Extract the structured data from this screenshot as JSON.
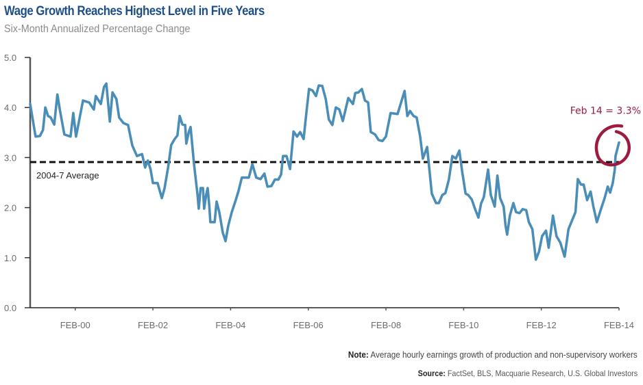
{
  "chart_data": {
    "type": "line",
    "title": "Wage Growth Reaches Highest Level in Five Years",
    "subtitle": "Six-Month Annualized Percentage Change",
    "xlabel": "",
    "ylabel": "",
    "xlim": [
      1998.92,
      2014.08
    ],
    "ylim": [
      0,
      5
    ],
    "grid": false,
    "y_ticks": [
      0,
      1,
      2,
      3,
      4,
      5
    ],
    "y_tick_labels": [
      "0.0",
      "1.0",
      "2.0",
      "3.0",
      "4.0",
      "5.0"
    ],
    "x_ticks": [
      2000.08,
      2002.08,
      2004.08,
      2006.08,
      2008.08,
      2010.08,
      2012.08,
      2014.08
    ],
    "x_tick_labels": [
      "FEB-00",
      "FEB-02",
      "FEB-04",
      "FEB-06",
      "FEB-08",
      "FEB-10",
      "FEB-12",
      "FEB-14"
    ],
    "series": [
      {
        "name": "Average hourly earnings growth (6-month annualized %)",
        "color": "#4a8db7",
        "x": [
          1998.92,
          1999.06,
          1999.17,
          1999.25,
          1999.31,
          1999.38,
          1999.45,
          1999.54,
          1999.62,
          1999.69,
          1999.8,
          1999.96,
          2000.03,
          2000.1,
          2000.28,
          2000.44,
          2000.56,
          2000.61,
          2000.74,
          2000.82,
          2000.88,
          2000.97,
          2001.04,
          2001.14,
          2001.21,
          2001.32,
          2001.44,
          2001.55,
          2001.67,
          2001.8,
          2001.88,
          2001.95,
          2002.02,
          2002.08,
          2002.2,
          2002.31,
          2002.38,
          2002.47,
          2002.55,
          2002.64,
          2002.71,
          2002.77,
          2002.84,
          2002.91,
          2002.94,
          2003.0,
          2003.05,
          2003.14,
          2003.23,
          2003.26,
          2003.31,
          2003.37,
          2003.4,
          2003.45,
          2003.49,
          2003.53,
          2003.56,
          2003.67,
          2003.72,
          2003.79,
          2003.88,
          2003.95,
          2004.02,
          2004.11,
          2004.2,
          2004.28,
          2004.37,
          2004.55,
          2004.64,
          2004.74,
          2004.85,
          2004.95,
          2005.03,
          2005.13,
          2005.22,
          2005.31,
          2005.38,
          2005.43,
          2005.52,
          2005.61,
          2005.7,
          2005.79,
          2005.87,
          2005.96,
          2006.03,
          2006.1,
          2006.19,
          2006.28,
          2006.35,
          2006.44,
          2006.53,
          2006.61,
          2006.7,
          2006.79,
          2006.88,
          2006.97,
          2007.11,
          2007.23,
          2007.29,
          2007.37,
          2007.46,
          2007.54,
          2007.62,
          2007.69,
          2007.8,
          2007.89,
          2007.99,
          2008.08,
          2008.2,
          2008.38,
          2008.47,
          2008.56,
          2008.63,
          2008.7,
          2008.79,
          2008.87,
          2008.96,
          2009.03,
          2009.14,
          2009.17,
          2009.26,
          2009.37,
          2009.44,
          2009.53,
          2009.61,
          2009.7,
          2009.79,
          2009.88,
          2009.97,
          2010.04,
          2010.13,
          2010.2,
          2010.29,
          2010.37,
          2010.46,
          2010.53,
          2010.6,
          2010.71,
          2010.78,
          2010.88,
          2010.95,
          2011.02,
          2011.11,
          2011.16,
          2011.2,
          2011.27,
          2011.36,
          2011.43,
          2011.52,
          2011.6,
          2011.69,
          2011.76,
          2011.85,
          2011.94,
          2012.02,
          2012.1,
          2012.2,
          2012.27,
          2012.38,
          2012.47,
          2012.57,
          2012.68,
          2012.78,
          2012.89,
          2012.96,
          2013.02,
          2013.1,
          2013.17,
          2013.26,
          2013.35,
          2013.42,
          2013.51,
          2013.62,
          2013.71,
          2013.79,
          2013.85,
          2013.92,
          2013.97,
          2013.99,
          2014.08
        ],
        "values": [
          4.07,
          3.42,
          3.43,
          3.55,
          4.0,
          3.83,
          3.8,
          3.66,
          4.26,
          3.93,
          3.46,
          3.42,
          3.89,
          3.42,
          4.14,
          4.1,
          3.96,
          4.23,
          4.07,
          4.41,
          4.48,
          3.72,
          4.3,
          4.17,
          3.8,
          3.69,
          3.65,
          3.24,
          3.03,
          3.07,
          2.8,
          2.94,
          2.76,
          2.49,
          2.49,
          2.19,
          2.39,
          2.8,
          3.25,
          3.37,
          3.44,
          3.83,
          3.66,
          3.65,
          3.28,
          3.5,
          3.61,
          2.86,
          2.25,
          1.98,
          2.39,
          2.39,
          1.98,
          2.25,
          2.39,
          2.05,
          1.71,
          1.71,
          2.12,
          1.91,
          1.5,
          1.33,
          1.64,
          1.91,
          2.12,
          2.32,
          2.6,
          2.6,
          2.87,
          2.6,
          2.57,
          2.68,
          2.42,
          2.43,
          2.56,
          2.56,
          2.66,
          3.03,
          3.03,
          2.77,
          3.52,
          3.42,
          3.51,
          3.37,
          3.89,
          4.37,
          4.34,
          4.23,
          4.44,
          4.43,
          4.17,
          3.76,
          3.65,
          4.0,
          3.96,
          3.73,
          4.19,
          4.07,
          4.29,
          4.3,
          4.37,
          4.14,
          4.1,
          3.51,
          3.46,
          3.35,
          3.33,
          3.42,
          3.89,
          3.87,
          4.1,
          4.33,
          3.83,
          3.93,
          3.83,
          3.8,
          3.42,
          2.98,
          3.21,
          2.98,
          2.28,
          2.09,
          2.09,
          2.25,
          2.29,
          2.56,
          3.03,
          2.98,
          3.14,
          2.73,
          2.28,
          2.25,
          2.16,
          1.98,
          1.8,
          2.08,
          2.21,
          2.76,
          2.25,
          2.02,
          2.64,
          2.19,
          2.02,
          1.64,
          1.46,
          1.84,
          2.09,
          1.91,
          1.89,
          1.97,
          1.95,
          1.71,
          1.57,
          0.96,
          1.12,
          1.43,
          1.54,
          1.2,
          1.84,
          1.43,
          1.3,
          1.02,
          1.57,
          1.78,
          1.91,
          2.57,
          2.46,
          2.46,
          2.15,
          2.32,
          2.02,
          1.71,
          1.98,
          2.19,
          2.42,
          2.3,
          2.49,
          2.76,
          3.03,
          3.3
        ]
      }
    ],
    "reference_lines": [
      {
        "label": "2004-7 Average",
        "value": 2.91,
        "style": "dashed",
        "color": "#111111"
      }
    ],
    "annotations": [
      {
        "text": "Feb 14 = 3.3%",
        "x": 2014.08,
        "y": 3.3,
        "color": "#9c1b3e",
        "marker": "hand-drawn-circle"
      }
    ],
    "legend": "none"
  },
  "footer": {
    "note_label": "Note:",
    "note_text": " Average hourly earnings growth of production and non-supervisory workers",
    "source_label": "Source:",
    "source_text": " FactSet, BLS, Macquarie Research, U.S. Global Investors"
  }
}
